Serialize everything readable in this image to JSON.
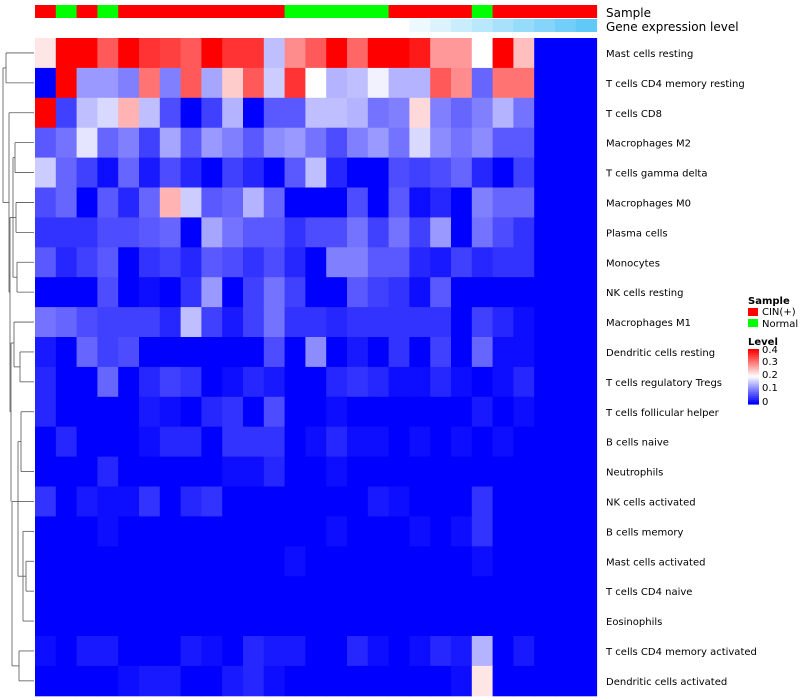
{
  "chart_data": {
    "type": "heatmap",
    "title": "",
    "annotation_tracks": [
      {
        "label": "Sample",
        "values": [
          "CIN(+)",
          "Normal",
          "CIN(+)",
          "Normal",
          "CIN(+)",
          "CIN(+)",
          "CIN(+)",
          "CIN(+)",
          "CIN(+)",
          "CIN(+)",
          "CIN(+)",
          "CIN(+)",
          "Normal",
          "Normal",
          "Normal",
          "Normal",
          "Normal",
          "CIN(+)",
          "CIN(+)",
          "CIN(+)",
          "CIN(+)",
          "Normal",
          "CIN(+)",
          "CIN(+)",
          "CIN(+)",
          "CIN(+)",
          "CIN(+)"
        ]
      },
      {
        "label": "Gene expression level",
        "values": [
          0,
          0,
          0,
          0,
          0,
          0,
          0,
          0,
          0,
          0,
          0,
          0,
          0,
          0,
          0,
          0,
          0,
          0,
          0.1,
          0.2,
          0.3,
          0.4,
          0.5,
          0.6,
          0.7,
          0.8,
          0.9
        ]
      }
    ],
    "rows": [
      "Mast cells resting",
      "T cells CD4 memory resting",
      "T cells CD8",
      "Macrophages M2",
      "T cells gamma delta",
      "Macrophages M0",
      "Plasma cells",
      "Monocytes",
      "NK cells resting",
      "Macrophages M1",
      "Dendritic cells resting",
      "T cells regulatory  Tregs",
      "T cells follicular helper",
      "B cells naive",
      "Neutrophils",
      "NK cells activated",
      "B cells memory",
      "Mast cells activated",
      "T cells CD4 naive",
      "Eosinophils",
      "T cells CD4 memory activated",
      "Dendritic cells activated"
    ],
    "values": [
      [
        0.22,
        0.4,
        0.4,
        0.33,
        0.4,
        0.36,
        0.35,
        0.33,
        0.4,
        0.36,
        0.36,
        0.15,
        0.29,
        0.33,
        0.4,
        0.32,
        0.4,
        0.4,
        0.38,
        0.28,
        0.28,
        0.2,
        0.4,
        0.25,
        0,
        0,
        0
      ],
      [
        0.0,
        0.4,
        0.12,
        0.12,
        0.1,
        0.31,
        0.1,
        0.33,
        0.13,
        0.24,
        0.33,
        0.16,
        0.36,
        0.2,
        0.14,
        0.15,
        0.19,
        0.14,
        0.14,
        0.33,
        0.29,
        0.08,
        0.31,
        0.31,
        0,
        0,
        0
      ],
      [
        0.4,
        0.05,
        0.15,
        0.17,
        0.26,
        0.15,
        0.06,
        0.0,
        0.05,
        0.14,
        0.0,
        0.07,
        0.07,
        0.15,
        0.15,
        0.14,
        0.09,
        0.1,
        0.23,
        0.1,
        0.08,
        0.1,
        0.14,
        0.09,
        0,
        0,
        0
      ],
      [
        0.07,
        0.09,
        0.18,
        0.08,
        0.1,
        0.05,
        0.13,
        0.07,
        0.12,
        0.1,
        0.07,
        0.11,
        0.12,
        0.09,
        0.06,
        0.1,
        0.12,
        0.09,
        0.17,
        0.11,
        0.09,
        0.11,
        0.07,
        0.07,
        0,
        0,
        0
      ],
      [
        0.16,
        0.08,
        0.05,
        0.01,
        0.08,
        0.02,
        0.06,
        0.03,
        0.0,
        0.05,
        0.03,
        0.0,
        0.07,
        0.15,
        0.03,
        0.0,
        0.0,
        0.06,
        0.05,
        0.06,
        0.08,
        0.03,
        0.0,
        0.05,
        0,
        0,
        0
      ],
      [
        0.06,
        0.08,
        0.0,
        0.07,
        0.03,
        0.08,
        0.26,
        0.16,
        0.07,
        0.08,
        0.14,
        0.08,
        0.0,
        0.0,
        0.0,
        0.06,
        0.0,
        0.07,
        0.01,
        0.03,
        0.0,
        0.1,
        0.08,
        0.08,
        0,
        0,
        0
      ],
      [
        0.04,
        0.04,
        0.04,
        0.06,
        0.06,
        0.07,
        0.08,
        0.0,
        0.13,
        0.09,
        0.07,
        0.07,
        0.04,
        0.06,
        0.06,
        0.09,
        0.05,
        0.09,
        0.05,
        0.12,
        0.0,
        0.09,
        0.06,
        0.04,
        0,
        0,
        0
      ],
      [
        0.07,
        0.03,
        0.05,
        0.07,
        0.0,
        0.04,
        0.05,
        0.03,
        0.07,
        0.06,
        0.04,
        0.06,
        0.03,
        0.0,
        0.1,
        0.1,
        0.07,
        0.07,
        0.03,
        0.02,
        0.05,
        0.03,
        0.04,
        0.04,
        0,
        0,
        0
      ],
      [
        0.0,
        0.0,
        0.0,
        0.06,
        0.0,
        0.01,
        0.0,
        0.04,
        0.12,
        0.0,
        0.05,
        0.09,
        0.05,
        0.0,
        0.0,
        0.07,
        0.05,
        0.04,
        0.01,
        0.07,
        0.0,
        0.0,
        0.0,
        0.0,
        0,
        0,
        0
      ],
      [
        0.09,
        0.08,
        0.06,
        0.05,
        0.05,
        0.05,
        0.03,
        0.15,
        0.05,
        0.02,
        0.05,
        0.09,
        0.04,
        0.04,
        0.03,
        0.04,
        0.04,
        0.04,
        0.04,
        0.04,
        0.0,
        0.05,
        0.03,
        0.01,
        0,
        0,
        0
      ],
      [
        0.02,
        0.0,
        0.08,
        0.05,
        0.06,
        0.0,
        0.0,
        0.0,
        0.0,
        0.0,
        0.0,
        0.06,
        0.0,
        0.11,
        0.0,
        0.02,
        0.0,
        0.04,
        0.0,
        0.05,
        0.0,
        0.08,
        0.01,
        0.01,
        0,
        0,
        0
      ],
      [
        0.03,
        0.0,
        0.0,
        0.08,
        0.0,
        0.03,
        0.05,
        0.04,
        0.0,
        0.01,
        0.03,
        0.02,
        0.0,
        0.0,
        0.03,
        0.04,
        0.03,
        0.01,
        0.01,
        0.03,
        0.01,
        0.0,
        0.01,
        0.03,
        0,
        0,
        0
      ],
      [
        0.03,
        0.0,
        0.0,
        0.0,
        0.0,
        0.02,
        0.01,
        0.0,
        0.03,
        0.04,
        0.0,
        0.06,
        0.0,
        0.0,
        0.01,
        0.0,
        0.0,
        0.0,
        0.0,
        0.0,
        0.0,
        0.02,
        0.0,
        0.01,
        0,
        0,
        0
      ],
      [
        0.0,
        0.03,
        0.0,
        0.0,
        0.0,
        0.01,
        0.03,
        0.03,
        0.0,
        0.04,
        0.04,
        0.04,
        0.0,
        0.01,
        0.03,
        0.01,
        0.01,
        0.0,
        0.01,
        0.0,
        0.01,
        0.0,
        0.01,
        0.0,
        0,
        0,
        0
      ],
      [
        0.0,
        0.0,
        0.0,
        0.03,
        0.0,
        0.0,
        0.0,
        0.0,
        0.0,
        0.01,
        0.01,
        0.03,
        0.0,
        0.0,
        0.01,
        0.0,
        0.0,
        0.0,
        0.0,
        0.0,
        0.0,
        0.0,
        0.0,
        0.0,
        0,
        0,
        0
      ],
      [
        0.04,
        0.0,
        0.02,
        0.01,
        0.01,
        0.04,
        0.0,
        0.03,
        0.04,
        0.0,
        0.0,
        0.0,
        0.0,
        0.0,
        0.0,
        0.0,
        0.02,
        0.01,
        0.0,
        0.0,
        0.0,
        0.04,
        0.0,
        0.0,
        0,
        0,
        0
      ],
      [
        0.0,
        0.0,
        0.0,
        0.01,
        0.0,
        0.0,
        0.0,
        0.0,
        0.0,
        0.0,
        0.0,
        0.0,
        0.0,
        0.0,
        0.01,
        0.0,
        0.0,
        0.0,
        0.01,
        0.0,
        0.01,
        0.04,
        0.0,
        0.0,
        0,
        0,
        0
      ],
      [
        0.0,
        0.0,
        0.0,
        0.0,
        0.0,
        0.0,
        0.0,
        0.0,
        0.0,
        0.0,
        0.0,
        0.0,
        0.01,
        0.0,
        0.0,
        0.0,
        0.0,
        0.0,
        0.0,
        0.0,
        0.0,
        0.01,
        0.0,
        0.0,
        0,
        0,
        0
      ],
      [
        0.0,
        0.0,
        0.0,
        0.0,
        0.0,
        0.0,
        0.0,
        0.0,
        0.0,
        0.0,
        0.0,
        0.0,
        0.0,
        0.0,
        0.0,
        0.0,
        0.0,
        0.0,
        0.0,
        0.0,
        0.0,
        0.0,
        0.0,
        0.0,
        0,
        0,
        0
      ],
      [
        0.0,
        0.0,
        0.0,
        0.0,
        0.0,
        0.0,
        0.0,
        0.0,
        0.0,
        0.0,
        0.0,
        0.0,
        0.0,
        0.0,
        0.0,
        0.0,
        0.0,
        0.0,
        0.0,
        0.0,
        0.0,
        0.0,
        0.0,
        0.0,
        0,
        0,
        0
      ],
      [
        0.01,
        0.0,
        0.02,
        0.02,
        0.0,
        0.0,
        0.0,
        0.02,
        0.01,
        0.0,
        0.03,
        0.02,
        0.02,
        0.0,
        0.0,
        0.03,
        0.01,
        0.0,
        0.01,
        0.03,
        0.02,
        0.14,
        0.0,
        0.02,
        0,
        0,
        0
      ],
      [
        0.0,
        0.0,
        0.0,
        0.0,
        0.01,
        0.02,
        0.02,
        0.0,
        0.0,
        0.02,
        0.03,
        0.01,
        0.0,
        0.0,
        0.0,
        0.0,
        0.0,
        0.0,
        0.0,
        0.0,
        0.01,
        0.22,
        0.0,
        0.0,
        0,
        0,
        0
      ]
    ],
    "color_scale": {
      "min": 0,
      "mid": 0.2,
      "max": 0.4,
      "low_color": "#0000ff",
      "mid_color": "#ffffff",
      "high_color": "#ff0000"
    },
    "legend": {
      "placement": "right",
      "sample_title": "Sample",
      "sample_entries": [
        {
          "label": "CIN(+)",
          "color": "#ff0000"
        },
        {
          "label": "Normal",
          "color": "#00ff00"
        }
      ],
      "level_title": "Level",
      "level_ticks": [
        "0.4",
        "0.3",
        "0.2",
        "0.1",
        "0"
      ]
    }
  }
}
